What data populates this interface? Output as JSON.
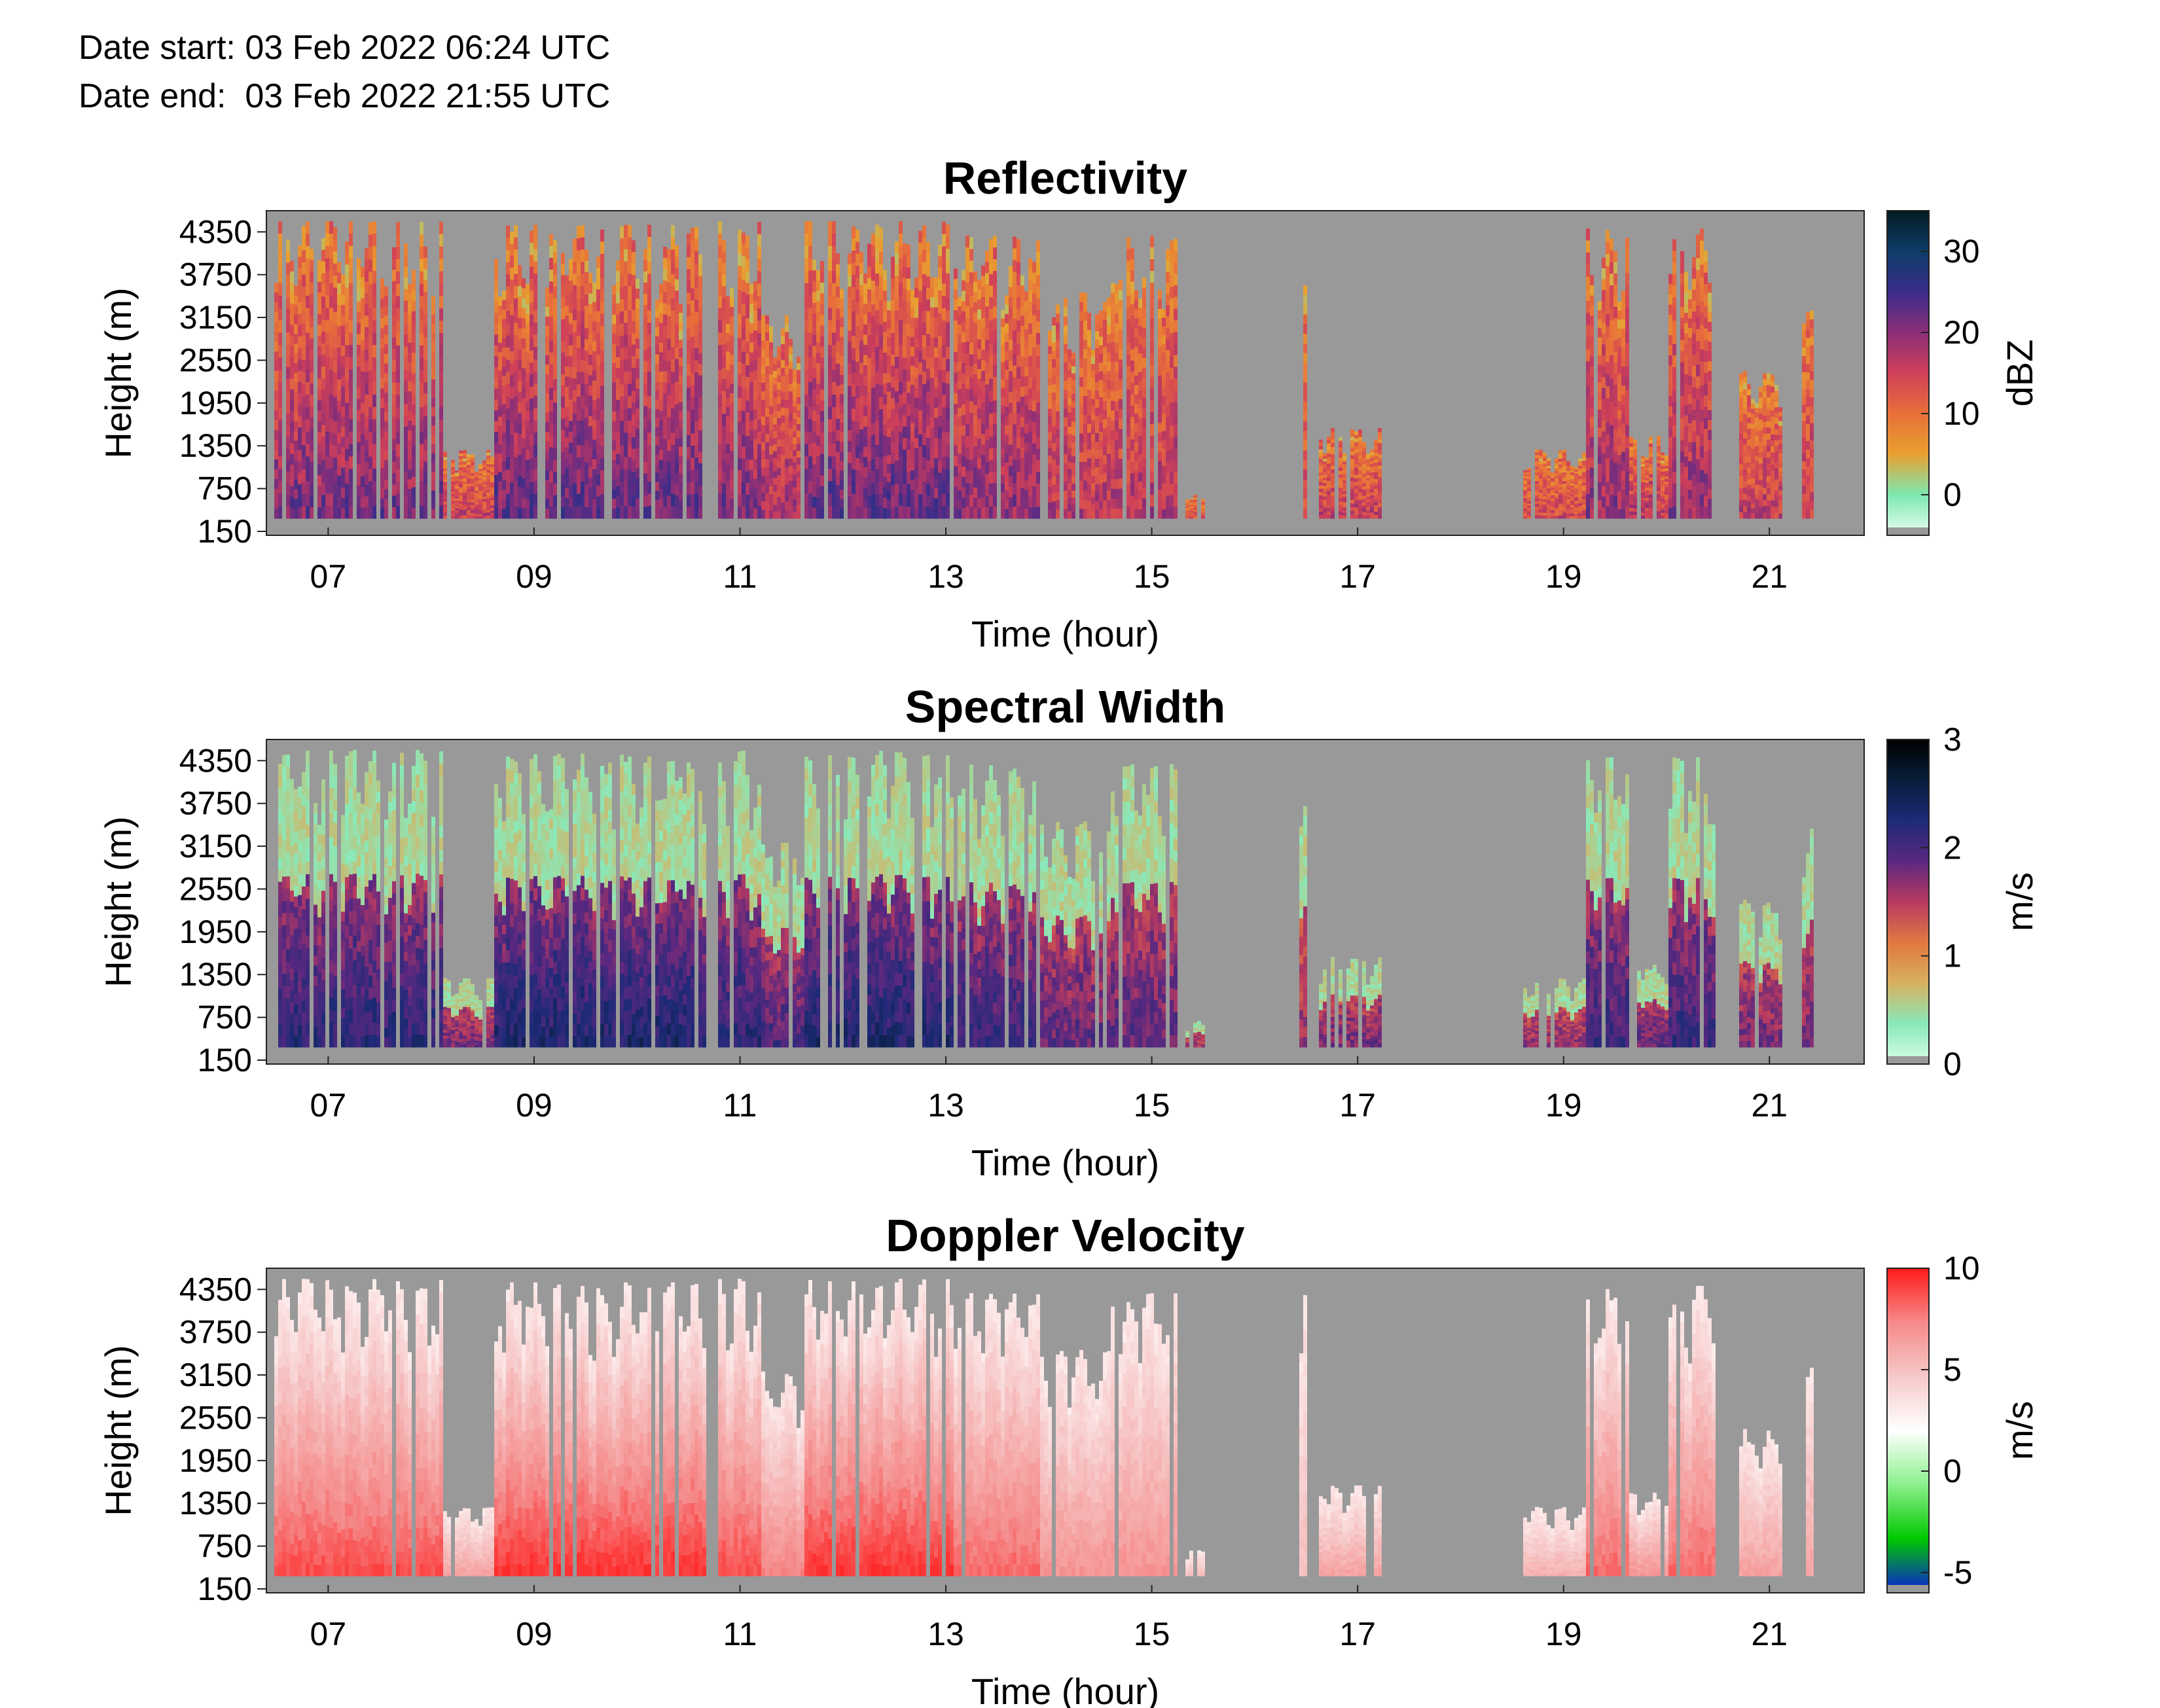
{
  "header": {
    "date_start": "Date start: 03 Feb 2022 06:24 UTC",
    "date_end": "Date end:  03 Feb 2022 21:55 UTC"
  },
  "colors": {
    "no_data": "#999999",
    "reflectivity_scale": [
      "#e8fff0",
      "#7de8b0",
      "#e8a030",
      "#e8703a",
      "#d04058",
      "#8a2e78",
      "#3a2d8a",
      "#0d3d68",
      "#031a20"
    ],
    "spectral_width_scale": [
      "#d8ffe8",
      "#8ae8b8",
      "#d8b060",
      "#e07840",
      "#b83a60",
      "#5a2880",
      "#1e2a78",
      "#071e3a",
      "#000000"
    ],
    "doppler_scale": [
      "#0a1bd8",
      "#00c800",
      "#8cf08c",
      "#ffffff",
      "#f7c8c8",
      "#f58a8a",
      "#ff1a1a"
    ]
  },
  "chart_data": [
    {
      "type": "heatmap",
      "title": "Reflectivity",
      "xlabel": "Time (hour)",
      "ylabel": "Height (m)",
      "colorbar_label": "dBZ",
      "x_range_hours": [
        6.4,
        21.92
      ],
      "y_range_m": [
        150,
        4500
      ],
      "x_ticks": [
        "07",
        "09",
        "11",
        "13",
        "15",
        "17",
        "19",
        "21"
      ],
      "x_tick_values": [
        7,
        9,
        11,
        13,
        15,
        17,
        19,
        21
      ],
      "y_ticks": [
        "150",
        "750",
        "1350",
        "1950",
        "2550",
        "3150",
        "3750",
        "4350"
      ],
      "colorbar_ticks": [
        "0",
        "10",
        "20",
        "30"
      ],
      "colorbar_tick_values": [
        0,
        10,
        20,
        30
      ],
      "colorbar_range": [
        -5,
        35
      ],
      "grid": false
    },
    {
      "type": "heatmap",
      "title": "Spectral Width",
      "xlabel": "Time (hour)",
      "ylabel": "Height (m)",
      "colorbar_label": "m/s",
      "x_range_hours": [
        6.4,
        21.92
      ],
      "y_range_m": [
        150,
        4500
      ],
      "x_ticks": [
        "07",
        "09",
        "11",
        "13",
        "15",
        "17",
        "19",
        "21"
      ],
      "x_tick_values": [
        7,
        9,
        11,
        13,
        15,
        17,
        19,
        21
      ],
      "y_ticks": [
        "150",
        "750",
        "1350",
        "1950",
        "2550",
        "3150",
        "3750",
        "4350"
      ],
      "colorbar_ticks": [
        "0",
        "1",
        "2",
        "3"
      ],
      "colorbar_tick_values": [
        0,
        1,
        2,
        3
      ],
      "colorbar_range": [
        0,
        3
      ],
      "grid": false
    },
    {
      "type": "heatmap",
      "title": "Doppler Velocity",
      "xlabel": "Time (hour)",
      "ylabel": "Height (m)",
      "colorbar_label": "m/s",
      "x_range_hours": [
        6.4,
        21.92
      ],
      "y_range_m": [
        150,
        4500
      ],
      "x_ticks": [
        "07",
        "09",
        "11",
        "13",
        "15",
        "17",
        "19",
        "21"
      ],
      "x_tick_values": [
        7,
        9,
        11,
        13,
        15,
        17,
        19,
        21
      ],
      "y_ticks": [
        "150",
        "750",
        "1350",
        "1950",
        "2550",
        "3150",
        "3750",
        "4350"
      ],
      "colorbar_ticks": [
        "-5",
        "0",
        "5",
        "10"
      ],
      "colorbar_tick_values": [
        -5,
        0,
        5,
        10
      ],
      "colorbar_range": [
        -6,
        10
      ],
      "grid": false
    }
  ]
}
